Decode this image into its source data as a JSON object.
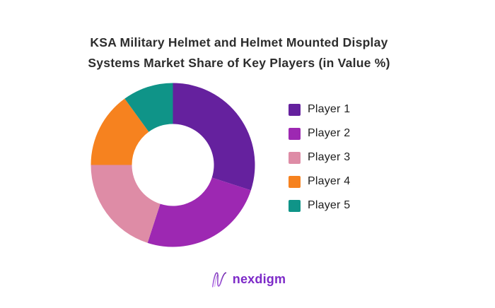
{
  "title": {
    "line1": "KSA Military Helmet and Helmet Mounted Display",
    "line2": "Systems Market Share of Key Players (in Value %)"
  },
  "chart_data": {
    "type": "pie",
    "subtype": "donut",
    "title": "KSA Military Helmet and Helmet Mounted Display Systems Market Share of Key Players (in Value %)",
    "unit": "% of value",
    "start_angle_deg": 0,
    "direction": "clockwise",
    "inner_radius_ratio": 0.5,
    "legend_position": "right",
    "series": [
      {
        "name": "Player 1",
        "value": 30,
        "color": "#65219E"
      },
      {
        "name": "Player 2",
        "value": 25,
        "color": "#9D28B2"
      },
      {
        "name": "Player 3",
        "value": 20,
        "color": "#DE8CA6"
      },
      {
        "name": "Player 4",
        "value": 15,
        "color": "#F6821F"
      },
      {
        "name": "Player 5",
        "value": 10,
        "color": "#0F9488"
      }
    ]
  },
  "logo": {
    "text": "nexdigm",
    "color": "#7D2AC8",
    "gradient_start": "#B06AE8",
    "gradient_end": "#6B21A8"
  }
}
